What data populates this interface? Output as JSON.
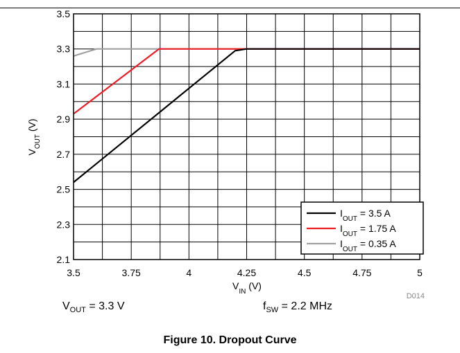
{
  "chart_data": {
    "type": "line",
    "xlabel": {
      "main": "V",
      "sub": "IN",
      "unit": " (V)"
    },
    "ylabel": {
      "main": "V",
      "sub": "OUT",
      "unit": " (V)"
    },
    "xlim": [
      3.5,
      5
    ],
    "ylim": [
      2.1,
      3.5
    ],
    "x_ticks": [
      "3.5",
      "3.75",
      "4",
      "4.25",
      "4.5",
      "4.75",
      "5"
    ],
    "y_ticks": [
      "2.1",
      "2.3",
      "2.5",
      "2.7",
      "2.9",
      "3.1",
      "3.3",
      "3.5"
    ],
    "x_gridlines": 12,
    "y_gridlines": 14,
    "grid": true,
    "legend_position": "bottom-right",
    "series": [
      {
        "label": {
          "main": "I",
          "sub": "OUT",
          "rest": " = 3.5 A"
        },
        "color": "#000000",
        "points": [
          [
            3.5,
            2.54
          ],
          [
            4.2,
            3.29
          ],
          [
            4.25,
            3.3
          ],
          [
            5.0,
            3.3
          ]
        ]
      },
      {
        "label": {
          "main": "I",
          "sub": "OUT",
          "rest": " = 1.75 A"
        },
        "color": "#ee1c25",
        "points": [
          [
            3.5,
            2.93
          ],
          [
            3.8,
            3.23
          ],
          [
            3.87,
            3.3
          ],
          [
            5.0,
            3.3
          ]
        ]
      },
      {
        "label": {
          "main": "I",
          "sub": "OUT",
          "rest": " = 0.35 A"
        },
        "color": "#a0a0a0",
        "points": [
          [
            3.5,
            3.26
          ],
          [
            3.6,
            3.3
          ],
          [
            5.0,
            3.3
          ]
        ]
      }
    ],
    "chart_id": "D014"
  },
  "conditions": [
    {
      "main": "V",
      "sub": "OUT",
      "rest": " = 3.3 V"
    },
    {
      "main": "f",
      "sub": "SW",
      "rest": " = 2.2 MHz"
    }
  ],
  "caption": "Figure 10. Dropout Curve"
}
